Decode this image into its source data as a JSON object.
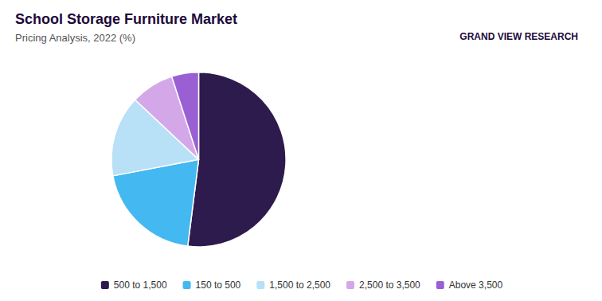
{
  "chart_data": {
    "type": "pie",
    "title": "School Storage Furniture Market",
    "subtitle": "Pricing Analysis, 2022 (%)",
    "categories": [
      "500 to 1,500",
      "150 to 500",
      "1,500 to 2,500",
      "2,500 to 3,500",
      "Above 3,500"
    ],
    "values": [
      52,
      20,
      15,
      8,
      5
    ],
    "colors": [
      "#2d1b4e",
      "#44b8f0",
      "#b8e0f7",
      "#d4a8e8",
      "#9b5fd4"
    ],
    "legend": "bottom",
    "annotations": [
      "GRAND VIEW RESEARCH"
    ]
  }
}
